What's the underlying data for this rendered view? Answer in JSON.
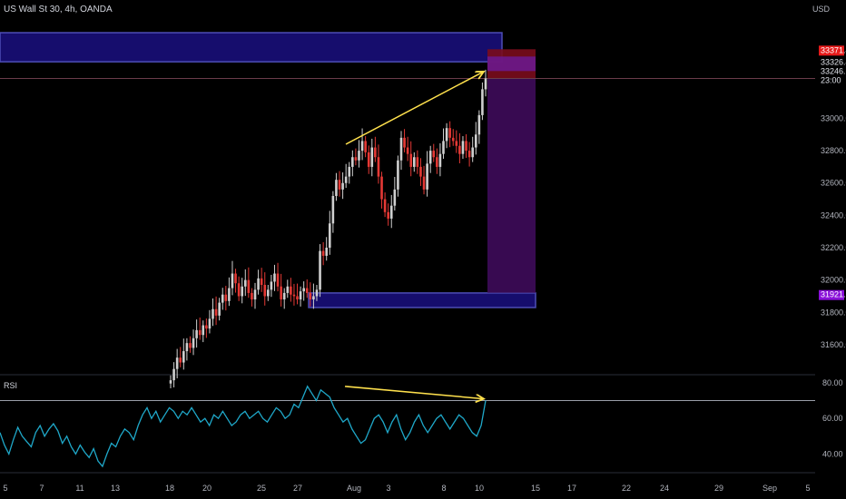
{
  "header": {
    "title": "US Wall St 30, 4h, OANDA",
    "currency": "USD"
  },
  "rsi_panel": {
    "label": "RSI"
  },
  "colors": {
    "background": "#000000",
    "candle_up": "#cfcfcf",
    "candle_down": "#e53935",
    "supply_zone": "#1a1080",
    "demand_zone": "#1a1080",
    "zone_border": "#5b5bd6",
    "position_purple": "#3b0b55",
    "position_red": "#7a0c1c",
    "trendline": "#ffe14d",
    "rsi_line": "#1fa8c9",
    "price_tag_red": "#e51b1b",
    "price_tag_purple": "#8a10d9"
  },
  "price_tags": [
    {
      "value": "33371.4",
      "style": "red"
    },
    {
      "value": "33326.4",
      "style": "plain"
    },
    {
      "value": "33246.6",
      "style": "plain"
    },
    {
      "value": "23:00",
      "style": "plain"
    },
    {
      "value": "31921.2",
      "style": "purple"
    }
  ],
  "chart_data": [
    {
      "type": "candlestick",
      "title": "US Wall St 30, 4h, OANDA",
      "ylim": [
        31420,
        33620
      ],
      "y_ticks": [
        "33000.0",
        "32800.0",
        "32600.0",
        "32400.0",
        "32200.0",
        "32000.0",
        "31800.0",
        "31600.0"
      ],
      "x_ticks": [
        "5",
        "7",
        "11",
        "13",
        "18",
        "20",
        "25",
        "27",
        "Aug",
        "3",
        "8",
        "10",
        "15",
        "17",
        "22",
        "24",
        "29",
        "Sep",
        "5"
      ],
      "current_price": 33246.6,
      "zones": [
        {
          "name": "supply",
          "low": 33350,
          "high": 33530
        },
        {
          "name": "demand",
          "low": 31830,
          "high": 31920
        }
      ],
      "long_position": {
        "entry": 33246.6,
        "stop": 33371.4,
        "target": 31921.2
      },
      "trendline": {
        "from": {
          "x": "Jul 30",
          "y": 32840
        },
        "to": {
          "x": "Aug 10",
          "y": 33290
        }
      },
      "closes": [
        31380,
        31450,
        31520,
        31490,
        31560,
        31610,
        31580,
        31640,
        31690,
        31660,
        31720,
        31700,
        31760,
        31820,
        31780,
        31860,
        31910,
        31870,
        31950,
        32040,
        31980,
        31900,
        31960,
        32000,
        31920,
        31880,
        31940,
        32010,
        31970,
        31900,
        31940,
        31990,
        32040,
        31960,
        31880,
        31920,
        31960,
        31910,
        31900,
        31880,
        31930,
        31950,
        31920,
        31880,
        31900,
        31940,
        32180,
        32150,
        32200,
        32350,
        32520,
        32620,
        32560,
        32600,
        32640,
        32700,
        32760,
        32740,
        32800,
        32860,
        32790,
        32700,
        32820,
        32760,
        32640,
        32500,
        32420,
        32380,
        32460,
        32560,
        32740,
        32880,
        32820,
        32780,
        32700,
        32760,
        32700,
        32640,
        32560,
        32720,
        32800,
        32760,
        32700,
        32780,
        32860,
        32940,
        32880,
        32860,
        32830,
        32780,
        32860,
        32800,
        32760,
        32820,
        32900,
        33020,
        33180,
        33246.6
      ]
    },
    {
      "type": "line",
      "title": "RSI",
      "ylim": [
        30,
        82
      ],
      "y_ticks": [
        "80.00",
        "60.00",
        "40.00"
      ],
      "level": 70,
      "trendline": {
        "from": {
          "x": "Jul 30",
          "y": 78
        },
        "to": {
          "x": "Aug 10",
          "y": 71
        }
      },
      "values": [
        52,
        45,
        40,
        48,
        55,
        50,
        47,
        44,
        52,
        56,
        50,
        54,
        57,
        53,
        46,
        50,
        44,
        40,
        45,
        41,
        38,
        43,
        36,
        33,
        40,
        46,
        44,
        50,
        54,
        52,
        48,
        56,
        62,
        66,
        60,
        64,
        58,
        62,
        66,
        64,
        60,
        64,
        62,
        66,
        62,
        58,
        60,
        56,
        62,
        60,
        64,
        60,
        56,
        58,
        62,
        64,
        60,
        62,
        64,
        60,
        58,
        62,
        66,
        64,
        60,
        62,
        68,
        66,
        72,
        78,
        74,
        70,
        76,
        74,
        72,
        66,
        62,
        58,
        60,
        54,
        50,
        46,
        48,
        54,
        60,
        62,
        58,
        52,
        58,
        62,
        54,
        48,
        52,
        58,
        62,
        56,
        52,
        56,
        60,
        62,
        58,
        54,
        58,
        62,
        60,
        56,
        52,
        50,
        56,
        70
      ]
    }
  ]
}
